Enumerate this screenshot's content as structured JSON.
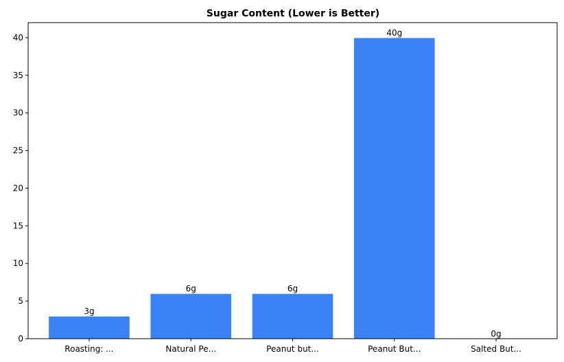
{
  "chart_data": {
    "type": "bar",
    "title": "Sugar Content (Lower is Better)",
    "xlabel": "",
    "ylabel": "",
    "categories": [
      "Roasting: ...",
      "Natural Pe...",
      "Peanut but...",
      "Peanut But...",
      "Salted But..."
    ],
    "values": [
      3,
      6,
      6,
      40,
      0
    ],
    "data_labels": [
      "3g",
      "6g",
      "6g",
      "40g",
      "0g"
    ],
    "ylim": [
      0,
      42
    ],
    "yticks": [
      0,
      5,
      10,
      15,
      20,
      25,
      30,
      35,
      40
    ],
    "grid": false,
    "bar_color": "#3b82f6",
    "bar_edge_color": "#ffffff"
  }
}
